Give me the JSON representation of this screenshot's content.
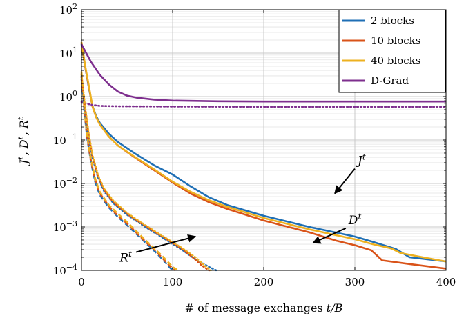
{
  "chart_data": {
    "type": "line",
    "xlabel": "# of message exchanges t/B",
    "ylabel": "J^t, D^t, R^t",
    "xlim": [
      0,
      400
    ],
    "ylim_log10": [
      -4,
      2
    ],
    "y_scale": "log",
    "grid": true,
    "legend_position": "top-right",
    "x_ticks": [
      {
        "value": 0,
        "label": "0"
      },
      {
        "value": 100,
        "label": "100"
      },
      {
        "value": 200,
        "label": "200"
      },
      {
        "value": 300,
        "label": "300"
      },
      {
        "value": 400,
        "label": "400"
      }
    ],
    "y_ticks": [
      {
        "exp": 2,
        "base": "10",
        "sup": "2"
      },
      {
        "exp": 1,
        "base": "10",
        "sup": "1"
      },
      {
        "exp": 0,
        "base": "10",
        "sup": "0"
      },
      {
        "exp": -1,
        "base": "10",
        "sup": "−1"
      },
      {
        "exp": -2,
        "base": "10",
        "sup": "−2"
      },
      {
        "exp": -3,
        "base": "10",
        "sup": "−3"
      },
      {
        "exp": -4,
        "base": "10",
        "sup": "−4"
      }
    ],
    "series": [
      {
        "name": "2 blocks",
        "color": "#1f6fb5",
        "style": "solid",
        "quantity": "J",
        "points": [
          [
            0,
            16
          ],
          [
            4,
            5
          ],
          [
            8,
            1.6
          ],
          [
            12,
            0.62
          ],
          [
            16,
            0.36
          ],
          [
            20,
            0.25
          ],
          [
            30,
            0.14
          ],
          [
            40,
            0.09
          ],
          [
            50,
            0.065
          ],
          [
            60,
            0.047
          ],
          [
            80,
            0.026
          ],
          [
            100,
            0.016
          ],
          [
            120,
            0.0085
          ],
          [
            140,
            0.0048
          ],
          [
            160,
            0.0032
          ],
          [
            200,
            0.0018
          ],
          [
            250,
            0.001
          ],
          [
            300,
            0.0006
          ],
          [
            320,
            0.00045
          ],
          [
            345,
            0.00031
          ],
          [
            360,
            0.0002
          ],
          [
            400,
            0.00016
          ]
        ]
      },
      {
        "name": "10 blocks",
        "color": "#d95319",
        "style": "solid",
        "quantity": "J",
        "points": [
          [
            0,
            17
          ],
          [
            4,
            5
          ],
          [
            8,
            1.7
          ],
          [
            12,
            0.6
          ],
          [
            16,
            0.34
          ],
          [
            20,
            0.23
          ],
          [
            30,
            0.12
          ],
          [
            40,
            0.075
          ],
          [
            50,
            0.053
          ],
          [
            60,
            0.038
          ],
          [
            80,
            0.02
          ],
          [
            100,
            0.0105
          ],
          [
            120,
            0.0058
          ],
          [
            140,
            0.0037
          ],
          [
            160,
            0.0026
          ],
          [
            200,
            0.0014
          ],
          [
            250,
            0.00075
          ],
          [
            280,
            0.00048
          ],
          [
            300,
            0.00038
          ],
          [
            318,
            0.00029
          ],
          [
            330,
            0.00017
          ],
          [
            360,
            0.00014
          ],
          [
            400,
            0.00011
          ]
        ]
      },
      {
        "name": "40 blocks",
        "color": "#edb120",
        "style": "solid",
        "quantity": "J",
        "points": [
          [
            0,
            18
          ],
          [
            4,
            5.2
          ],
          [
            8,
            1.8
          ],
          [
            12,
            0.62
          ],
          [
            16,
            0.34
          ],
          [
            20,
            0.23
          ],
          [
            30,
            0.12
          ],
          [
            40,
            0.075
          ],
          [
            50,
            0.054
          ],
          [
            60,
            0.039
          ],
          [
            80,
            0.021
          ],
          [
            100,
            0.011
          ],
          [
            120,
            0.0064
          ],
          [
            140,
            0.0041
          ],
          [
            160,
            0.0029
          ],
          [
            200,
            0.0016
          ],
          [
            250,
            0.00088
          ],
          [
            300,
            0.00052
          ],
          [
            320,
            0.0004
          ],
          [
            340,
            0.00032
          ],
          [
            350,
            0.00025
          ],
          [
            380,
            0.00019
          ],
          [
            400,
            0.00016
          ]
        ]
      },
      {
        "name": "D-Grad",
        "color": "#7e2f8e",
        "style": "solid",
        "quantity": "J",
        "points": [
          [
            0,
            16
          ],
          [
            10,
            6.5
          ],
          [
            20,
            3.2
          ],
          [
            30,
            1.9
          ],
          [
            40,
            1.3
          ],
          [
            50,
            1.05
          ],
          [
            60,
            0.95
          ],
          [
            80,
            0.85
          ],
          [
            100,
            0.81
          ],
          [
            150,
            0.78
          ],
          [
            200,
            0.77
          ],
          [
            300,
            0.77
          ],
          [
            400,
            0.77
          ]
        ]
      },
      {
        "name": "",
        "color": "#7e2f8e",
        "style": "dotted",
        "quantity": "D/R",
        "points": [
          [
            0,
            0.75
          ],
          [
            10,
            0.65
          ],
          [
            20,
            0.61
          ],
          [
            40,
            0.6
          ],
          [
            100,
            0.59
          ],
          [
            200,
            0.58
          ],
          [
            300,
            0.58
          ],
          [
            400,
            0.58
          ]
        ]
      },
      {
        "name": "",
        "color": "#1f6fb5",
        "style": "dashed",
        "quantity": "R",
        "points": [
          [
            0,
            3
          ],
          [
            3,
            0.5
          ],
          [
            6,
            0.12
          ],
          [
            10,
            0.035
          ],
          [
            15,
            0.011
          ],
          [
            20,
            0.0055
          ],
          [
            30,
            0.0028
          ],
          [
            40,
            0.0017
          ],
          [
            50,
            0.0011
          ],
          [
            60,
            0.0007
          ],
          [
            70,
            0.00044
          ],
          [
            80,
            0.00028
          ],
          [
            90,
            0.00017
          ],
          [
            98,
            0.00011
          ],
          [
            102,
            0.0001
          ]
        ]
      },
      {
        "name": "",
        "color": "#d95319",
        "style": "dashed",
        "quantity": "R",
        "points": [
          [
            0,
            3.4
          ],
          [
            3,
            0.55
          ],
          [
            6,
            0.13
          ],
          [
            10,
            0.037
          ],
          [
            15,
            0.012
          ],
          [
            20,
            0.006
          ],
          [
            30,
            0.003
          ],
          [
            40,
            0.0018
          ],
          [
            50,
            0.0012
          ],
          [
            60,
            0.00075
          ],
          [
            70,
            0.00046
          ],
          [
            80,
            0.0003
          ],
          [
            90,
            0.00018
          ],
          [
            100,
            0.00011
          ],
          [
            103,
            0.0001
          ]
        ]
      },
      {
        "name": "",
        "color": "#edb120",
        "style": "dashed",
        "quantity": "R",
        "points": [
          [
            0,
            3.8
          ],
          [
            3,
            0.6
          ],
          [
            6,
            0.14
          ],
          [
            10,
            0.04
          ],
          [
            15,
            0.013
          ],
          [
            20,
            0.0065
          ],
          [
            30,
            0.0032
          ],
          [
            40,
            0.002
          ],
          [
            50,
            0.0013
          ],
          [
            60,
            0.0008
          ],
          [
            70,
            0.0005
          ],
          [
            80,
            0.00032
          ],
          [
            90,
            0.0002
          ],
          [
            100,
            0.00012
          ],
          [
            106,
            0.0001
          ]
        ]
      },
      {
        "name": "",
        "color": "#1f6fb5",
        "style": "dotted",
        "quantity": "D",
        "points": [
          [
            0,
            2.5
          ],
          [
            4,
            0.5
          ],
          [
            8,
            0.12
          ],
          [
            12,
            0.04
          ],
          [
            18,
            0.014
          ],
          [
            25,
            0.0065
          ],
          [
            35,
            0.0035
          ],
          [
            50,
            0.0019
          ],
          [
            70,
            0.001
          ],
          [
            90,
            0.00055
          ],
          [
            110,
            0.0003
          ],
          [
            125,
            0.00018
          ],
          [
            140,
            0.00012
          ],
          [
            148,
            0.0001
          ]
        ]
      },
      {
        "name": "",
        "color": "#d95319",
        "style": "dotted",
        "quantity": "D",
        "points": [
          [
            0,
            2.8
          ],
          [
            4,
            0.55
          ],
          [
            8,
            0.13
          ],
          [
            12,
            0.043
          ],
          [
            18,
            0.015
          ],
          [
            25,
            0.007
          ],
          [
            35,
            0.0037
          ],
          [
            50,
            0.002
          ],
          [
            70,
            0.00105
          ],
          [
            90,
            0.00058
          ],
          [
            110,
            0.00031
          ],
          [
            122,
            0.0002
          ],
          [
            132,
            0.00013
          ],
          [
            140,
            0.0001
          ]
        ]
      },
      {
        "name": "",
        "color": "#edb120",
        "style": "dotted",
        "quantity": "D",
        "points": [
          [
            0,
            3.2
          ],
          [
            4,
            0.6
          ],
          [
            8,
            0.14
          ],
          [
            12,
            0.046
          ],
          [
            18,
            0.016
          ],
          [
            25,
            0.0075
          ],
          [
            35,
            0.004
          ],
          [
            50,
            0.0021
          ],
          [
            70,
            0.0011
          ],
          [
            90,
            0.0006
          ],
          [
            110,
            0.00033
          ],
          [
            125,
            0.0002
          ],
          [
            135,
            0.00013
          ],
          [
            142,
            0.0001
          ]
        ]
      }
    ],
    "legend": [
      "2 blocks",
      "10 blocks",
      "40 blocks",
      "D-Grad"
    ],
    "annotations": [
      {
        "text": "J",
        "sup": "t",
        "text_at": [
          300,
          -1.66
        ],
        "arrow_to": [
          278,
          -2.23
        ]
      },
      {
        "text": "D",
        "sup": "t",
        "text_at": [
          290,
          -3.03
        ],
        "arrow_to": [
          254,
          -3.37
        ]
      },
      {
        "text": "R",
        "sup": "t",
        "text_at": [
          60,
          -3.58
        ],
        "arrow_to": [
          125,
          -3.22
        ]
      }
    ]
  }
}
